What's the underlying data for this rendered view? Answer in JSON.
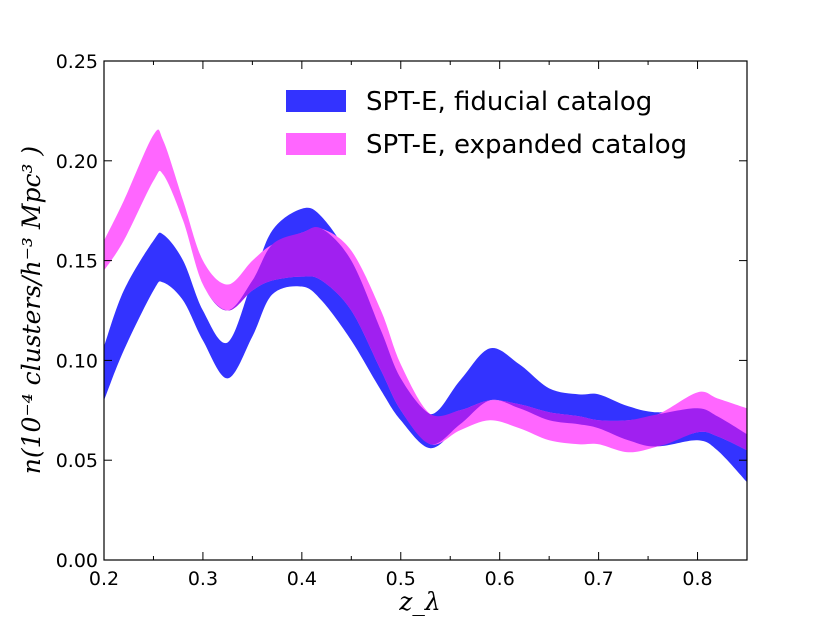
{
  "chart_data": {
    "type": "area",
    "xlabel": "z_λ",
    "ylabel": "n(10⁻⁴ clusters/h⁻³ Mpc³ )",
    "xlim": [
      0.2,
      0.85
    ],
    "ylim": [
      0.0,
      0.25
    ],
    "xticks": [
      "0.2",
      "0.3",
      "0.4",
      "0.5",
      "0.6",
      "0.7",
      "0.8"
    ],
    "yticks": [
      "0.00",
      "0.05",
      "0.10",
      "0.15",
      "0.20",
      "0.25"
    ],
    "grid": false,
    "legend_position": "top-right",
    "overlap_color": "#a020f0",
    "x": [
      0.2,
      0.22,
      0.25,
      0.26,
      0.28,
      0.3,
      0.325,
      0.35,
      0.37,
      0.4,
      0.42,
      0.45,
      0.48,
      0.5,
      0.53,
      0.56,
      0.59,
      0.62,
      0.65,
      0.68,
      0.7,
      0.73,
      0.76,
      0.8,
      0.82,
      0.85
    ],
    "series": [
      {
        "name": "SPT-E, fiducial catalog",
        "color": "#3333ff",
        "lower": [
          0.08,
          0.105,
          0.135,
          0.139,
          0.13,
          0.11,
          0.091,
          0.112,
          0.133,
          0.137,
          0.13,
          0.11,
          0.085,
          0.07,
          0.056,
          0.068,
          0.08,
          0.076,
          0.07,
          0.068,
          0.066,
          0.06,
          0.057,
          0.06,
          0.055,
          0.039
        ],
        "upper": [
          0.107,
          0.135,
          0.16,
          0.163,
          0.15,
          0.125,
          0.109,
          0.14,
          0.165,
          0.176,
          0.172,
          0.15,
          0.115,
          0.091,
          0.073,
          0.09,
          0.106,
          0.098,
          0.086,
          0.083,
          0.083,
          0.077,
          0.074,
          0.076,
          0.072,
          0.063
        ]
      },
      {
        "name": "SPT-E, expanded catalog",
        "color": "#ff66ff",
        "lower": [
          0.145,
          0.16,
          0.19,
          0.193,
          0.17,
          0.138,
          0.125,
          0.135,
          0.14,
          0.142,
          0.14,
          0.125,
          0.095,
          0.075,
          0.058,
          0.065,
          0.07,
          0.066,
          0.06,
          0.058,
          0.058,
          0.054,
          0.057,
          0.064,
          0.062,
          0.055
        ],
        "upper": [
          0.16,
          0.18,
          0.213,
          0.21,
          0.18,
          0.15,
          0.138,
          0.15,
          0.158,
          0.164,
          0.166,
          0.155,
          0.125,
          0.098,
          0.073,
          0.075,
          0.08,
          0.078,
          0.074,
          0.072,
          0.07,
          0.07,
          0.073,
          0.084,
          0.081,
          0.076
        ]
      }
    ]
  }
}
